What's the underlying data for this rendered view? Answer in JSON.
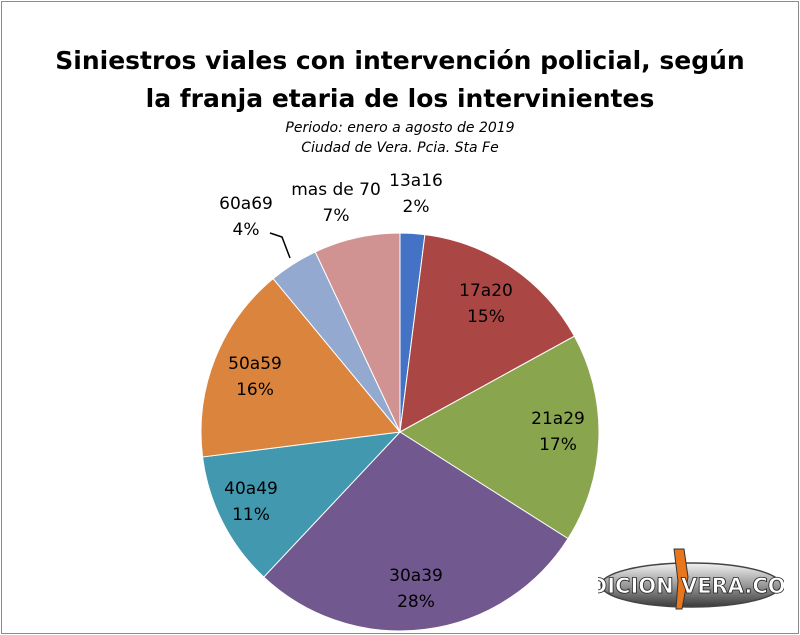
{
  "title_line1": "Siniestros viales con intervención policial, según",
  "title_line2": "la franja etaria de los intervinientes",
  "subtitle_line1": "Periodo: enero a agosto de 2019",
  "subtitle_line2": "Ciudad de Vera. Pcia. Sta Fe",
  "watermark": "EDICION VERA.COM",
  "chart_data": {
    "type": "pie",
    "title": "Siniestros viales con intervención policial, según la franja etaria de los intervinientes",
    "subtitle": "Periodo: enero a agosto de 2019 — Ciudad de Vera. Pcia. Sta Fe",
    "start_angle_deg": 0,
    "direction": "clockwise",
    "slices": [
      {
        "label": "13a16",
        "value": 2,
        "pct_label": "2%",
        "color": "#4472c4"
      },
      {
        "label": "17a20",
        "value": 15,
        "pct_label": "15%",
        "color": "#aa4643"
      },
      {
        "label": "21a29",
        "value": 17,
        "pct_label": "17%",
        "color": "#89a54e"
      },
      {
        "label": "30a39",
        "value": 28,
        "pct_label": "28%",
        "color": "#71588f"
      },
      {
        "label": "40a49",
        "value": 11,
        "pct_label": "11%",
        "color": "#4198af"
      },
      {
        "label": "50a59",
        "value": 16,
        "pct_label": "16%",
        "color": "#db843d"
      },
      {
        "label": "60a69",
        "value": 4,
        "pct_label": "4%",
        "color": "#93a9cf"
      },
      {
        "label": "mas de 70",
        "value": 7,
        "pct_label": "7%",
        "color": "#d19392"
      }
    ]
  }
}
